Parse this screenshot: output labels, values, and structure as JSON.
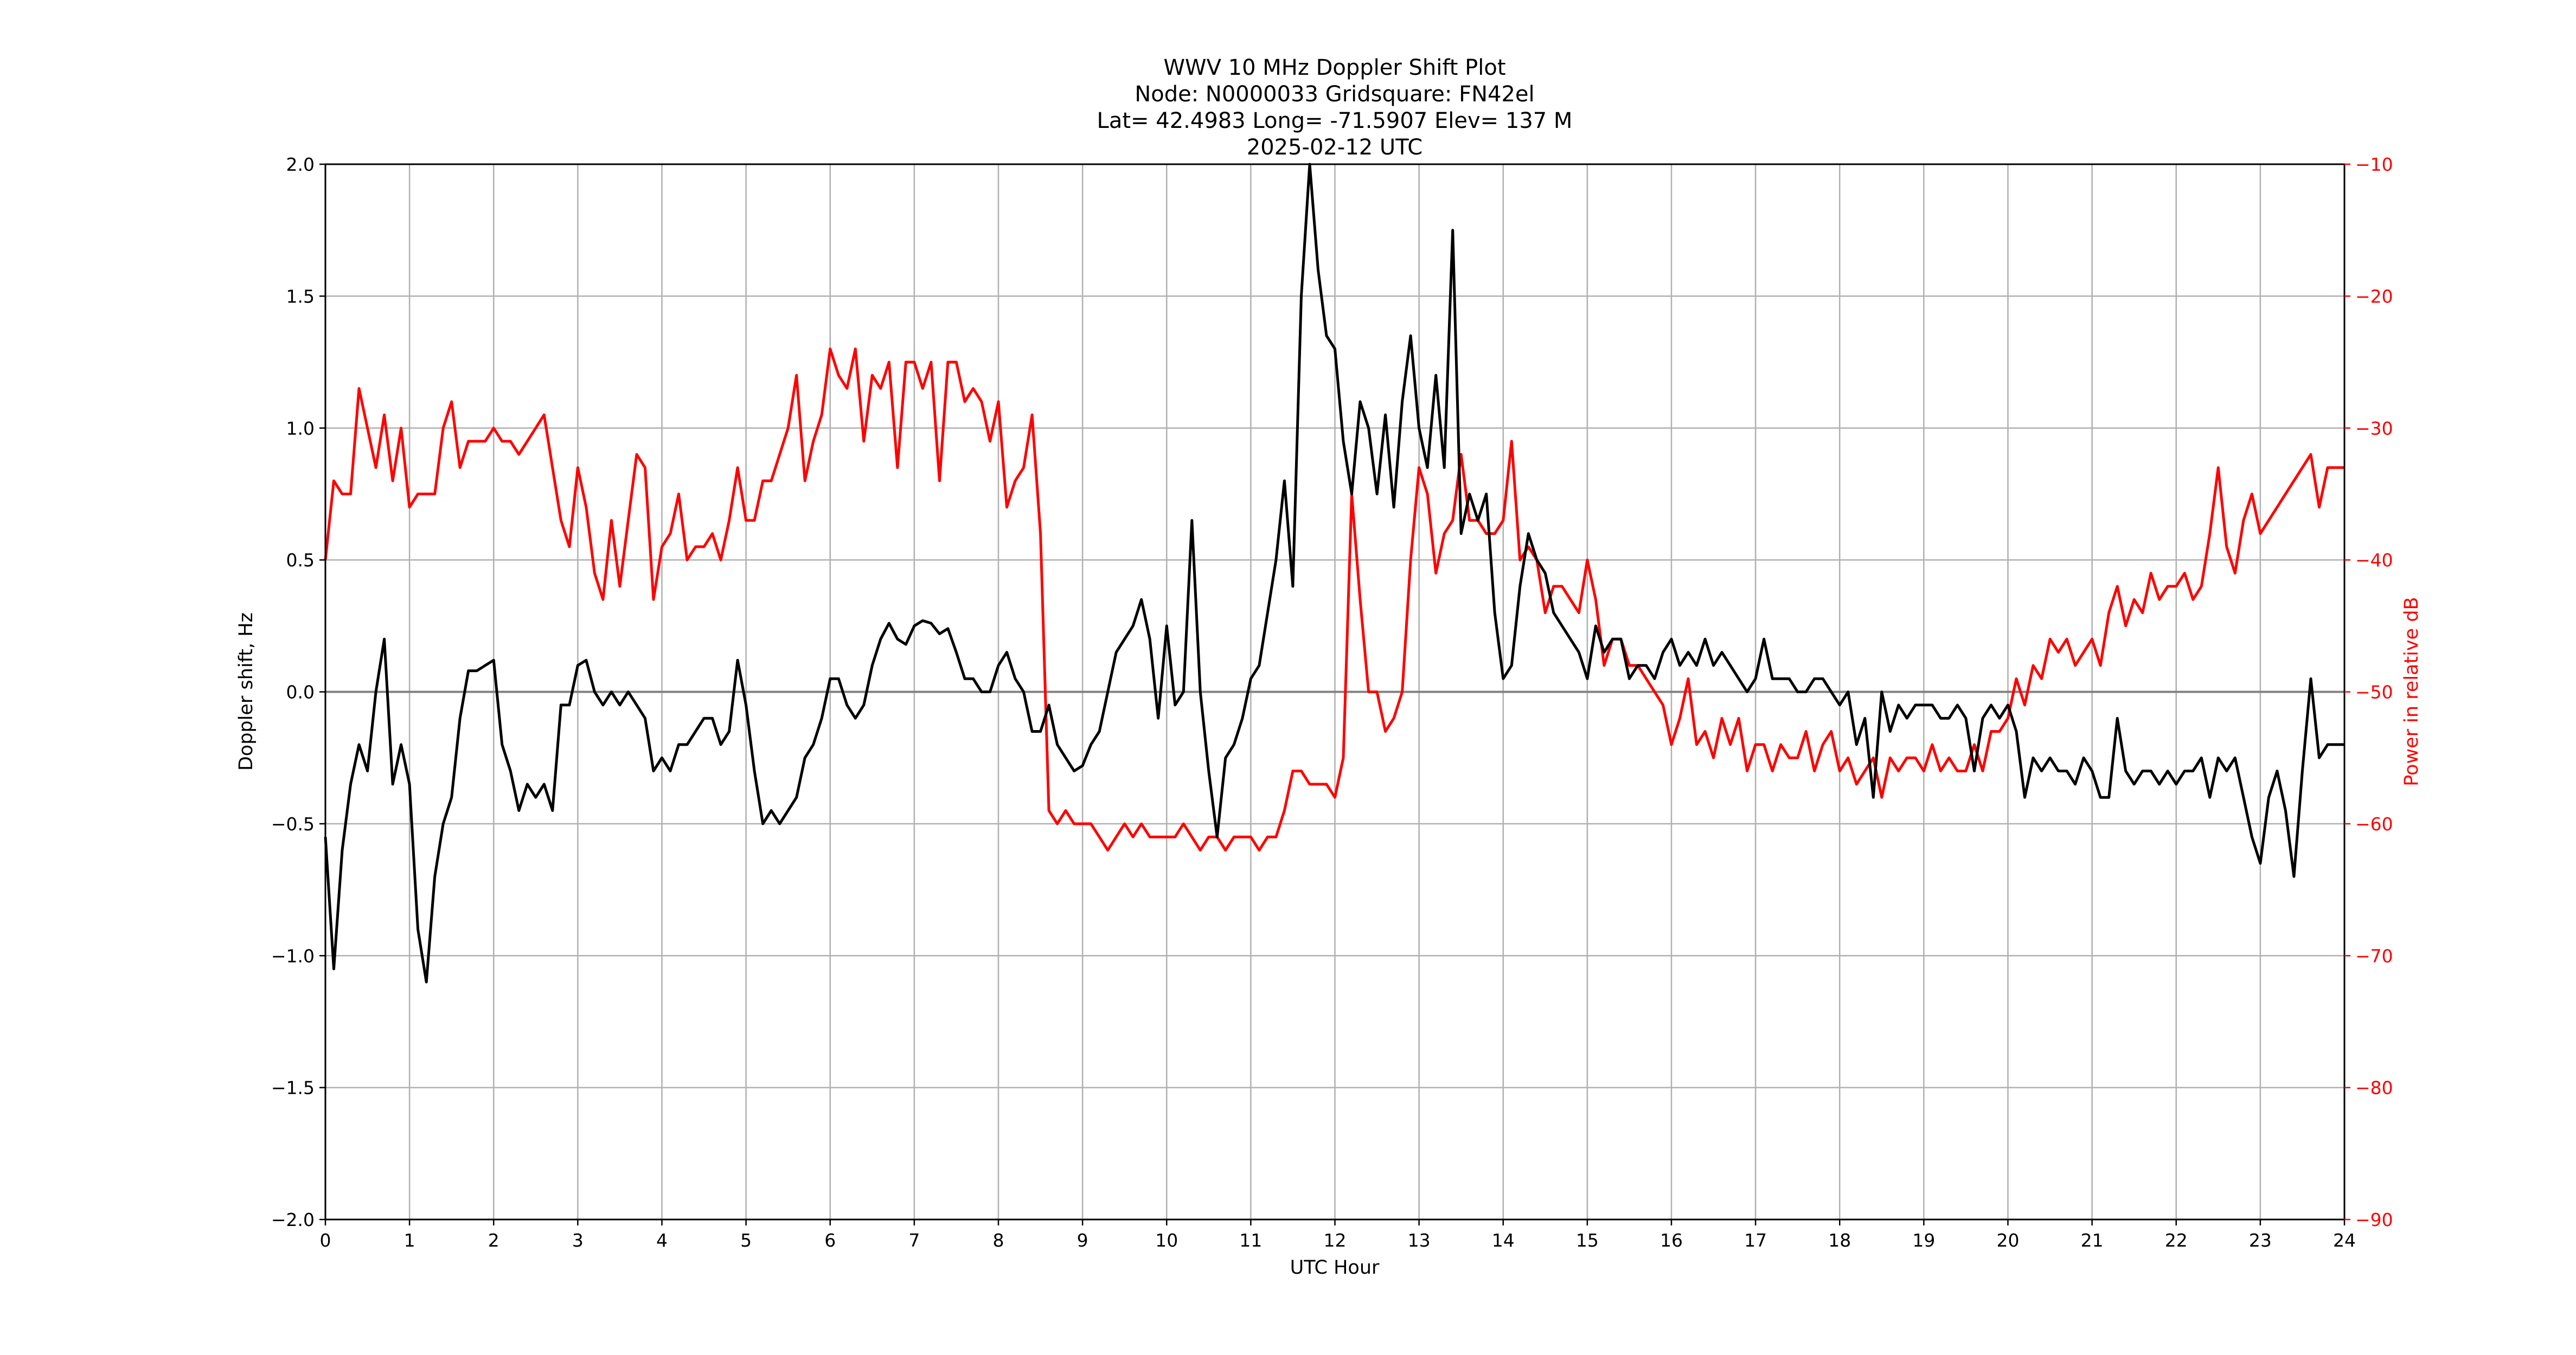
{
  "chart_data": {
    "type": "line",
    "title_lines": [
      "WWV 10 MHz Doppler Shift Plot",
      "Node:  N0000033     Gridsquare:  FN42el",
      "Lat= 42.4983    Long= -71.5907    Elev= 137 M",
      "2025-02-12  UTC"
    ],
    "xlabel": "UTC Hour",
    "ylabel": "Doppler shift, Hz",
    "y2label": "Power in relative dB",
    "xlim": [
      0,
      24
    ],
    "ylim": [
      -2.0,
      2.0
    ],
    "y2lim": [
      -90,
      -10
    ],
    "grid": true,
    "x_ticks": [
      "0",
      "1",
      "2",
      "3",
      "4",
      "5",
      "6",
      "7",
      "8",
      "9",
      "10",
      "11",
      "12",
      "13",
      "14",
      "15",
      "16",
      "17",
      "18",
      "19",
      "20",
      "21",
      "22",
      "23",
      "24"
    ],
    "y_ticks": [
      "2.0",
      "1.5",
      "1.0",
      "0.5",
      "0.0",
      "−0.5",
      "−1.0",
      "−1.5",
      "−2.0"
    ],
    "y2_ticks": [
      "−10",
      "−20",
      "−30",
      "−40",
      "−50",
      "−60",
      "−70",
      "−80",
      "−90"
    ],
    "x_step_hours": 0.1,
    "colors": {
      "doppler": "#000000",
      "power": "#ff0000",
      "grid": "#b0b0b0",
      "zero": "#808080"
    },
    "series": [
      {
        "name": "Doppler shift (Hz)",
        "axis": "left",
        "values": [
          -0.55,
          -1.05,
          -0.6,
          -0.35,
          -0.2,
          -0.3,
          0.0,
          0.2,
          -0.35,
          -0.2,
          -0.35,
          -0.9,
          -1.1,
          -0.7,
          -0.5,
          -0.4,
          -0.1,
          0.08,
          0.08,
          0.1,
          0.12,
          -0.2,
          -0.3,
          -0.45,
          -0.35,
          -0.4,
          -0.35,
          -0.45,
          -0.05,
          -0.05,
          0.1,
          0.12,
          0.0,
          -0.05,
          0.0,
          -0.05,
          0.0,
          -0.05,
          -0.1,
          -0.3,
          -0.25,
          -0.3,
          -0.2,
          -0.2,
          -0.15,
          -0.1,
          -0.1,
          -0.2,
          -0.15,
          0.12,
          -0.05,
          -0.3,
          -0.5,
          -0.45,
          -0.5,
          -0.45,
          -0.4,
          -0.25,
          -0.2,
          -0.1,
          0.05,
          0.05,
          -0.05,
          -0.1,
          -0.05,
          0.1,
          0.2,
          0.26,
          0.2,
          0.18,
          0.25,
          0.27,
          0.26,
          0.22,
          0.24,
          0.15,
          0.05,
          0.05,
          0.0,
          0.0,
          0.1,
          0.15,
          0.05,
          0.0,
          -0.15,
          -0.15,
          -0.05,
          -0.2,
          -0.25,
          -0.3,
          -0.28,
          -0.2,
          -0.15,
          0.0,
          0.15,
          0.2,
          0.25,
          0.35,
          0.2,
          -0.1,
          0.25,
          -0.05,
          0.0,
          0.65,
          0.0,
          -0.3,
          -0.55,
          -0.25,
          -0.2,
          -0.1,
          0.05,
          0.1,
          0.3,
          0.5,
          0.8,
          0.4,
          1.5,
          2.0,
          1.6,
          1.35,
          1.3,
          0.95,
          0.75,
          1.1,
          1.0,
          0.75,
          1.05,
          0.7,
          1.1,
          1.35,
          1.0,
          0.85,
          1.2,
          0.85,
          1.75,
          0.6,
          0.75,
          0.65,
          0.75,
          0.3,
          0.05,
          0.1,
          0.4,
          0.6,
          0.5,
          0.45,
          0.3,
          0.25,
          0.2,
          0.15,
          0.05,
          0.25,
          0.15,
          0.2,
          0.2,
          0.05,
          0.1,
          0.1,
          0.05,
          0.15,
          0.2,
          0.1,
          0.15,
          0.1,
          0.2,
          0.1,
          0.15,
          0.1,
          0.05,
          0.0,
          0.05,
          0.2,
          0.05,
          0.05,
          0.05,
          0.0,
          0.0,
          0.05,
          0.05,
          0.0,
          -0.05,
          0.0,
          -0.2,
          -0.1,
          -0.4,
          0.0,
          -0.15,
          -0.05,
          -0.1,
          -0.05,
          -0.05,
          -0.05,
          -0.1,
          -0.1,
          -0.05,
          -0.1,
          -0.3,
          -0.1,
          -0.05,
          -0.1,
          -0.05,
          -0.15,
          -0.4,
          -0.25,
          -0.3,
          -0.25,
          -0.3,
          -0.3,
          -0.35,
          -0.25,
          -0.3,
          -0.4,
          -0.4,
          -0.1,
          -0.3,
          -0.35,
          -0.3,
          -0.3,
          -0.35,
          -0.3,
          -0.35,
          -0.3,
          -0.3,
          -0.25,
          -0.4,
          -0.25,
          -0.3,
          -0.25,
          -0.4,
          -0.55,
          -0.65,
          -0.4,
          -0.3,
          -0.45,
          -0.7,
          -0.3,
          0.05,
          -0.25,
          -0.2,
          -0.2,
          -0.2
        ]
      },
      {
        "name": "Power (relative dB)",
        "axis": "right",
        "values": [
          -40,
          -34,
          -35,
          -35,
          -27,
          -30,
          -33,
          -29,
          -34,
          -30,
          -36,
          -35,
          -35,
          -35,
          -30,
          -28,
          -33,
          -31,
          -31,
          -31,
          -30,
          -31,
          -31,
          -32,
          -31,
          -30,
          -29,
          -33,
          -37,
          -39,
          -33,
          -36,
          -41,
          -43,
          -37,
          -42,
          -37,
          -32,
          -33,
          -43,
          -39,
          -38,
          -35,
          -40,
          -39,
          -39,
          -38,
          -40,
          -37,
          -33,
          -37,
          -37,
          -34,
          -34,
          -32,
          -30,
          -26,
          -34,
          -31,
          -29,
          -24,
          -26,
          -27,
          -24,
          -31,
          -26,
          -27,
          -25,
          -33,
          -25,
          -25,
          -27,
          -25,
          -34,
          -25,
          -25,
          -28,
          -27,
          -28,
          -31,
          -28,
          -36,
          -34,
          -33,
          -29,
          -38,
          -59,
          -60,
          -59,
          -60,
          -60,
          -60,
          -61,
          -62,
          -61,
          -60,
          -61,
          -60,
          -61,
          -61,
          -61,
          -61,
          -60,
          -61,
          -62,
          -61,
          -61,
          -62,
          -61,
          -61,
          -61,
          -62,
          -61,
          -61,
          -59,
          -56,
          -56,
          -57,
          -57,
          -57,
          -58,
          -55,
          -35,
          -43,
          -50,
          -50,
          -53,
          -52,
          -50,
          -40,
          -33,
          -35,
          -41,
          -38,
          -37,
          -32,
          -37,
          -37,
          -38,
          -38,
          -37,
          -31,
          -40,
          -39,
          -40,
          -44,
          -42,
          -42,
          -43,
          -44,
          -40,
          -43,
          -48,
          -46,
          -46,
          -48,
          -48,
          -49,
          -50,
          -51,
          -54,
          -52,
          -49,
          -54,
          -53,
          -55,
          -52,
          -54,
          -52,
          -56,
          -54,
          -54,
          -56,
          -54,
          -55,
          -55,
          -53,
          -56,
          -54,
          -53,
          -56,
          -55,
          -57,
          -56,
          -55,
          -58,
          -55,
          -56,
          -55,
          -55,
          -56,
          -54,
          -56,
          -55,
          -56,
          -56,
          -54,
          -56,
          -53,
          -53,
          -52,
          -49,
          -51,
          -48,
          -49,
          -46,
          -47,
          -46,
          -48,
          -47,
          -46,
          -48,
          -44,
          -42,
          -45,
          -43,
          -44,
          -41,
          -43,
          -42,
          -42,
          -41,
          -43,
          -42,
          -38,
          -33,
          -39,
          -41,
          -37,
          -35,
          -38,
          -37,
          -36,
          -35,
          -34,
          -33,
          -32,
          -36,
          -33,
          -33,
          -33
        ]
      }
    ]
  }
}
